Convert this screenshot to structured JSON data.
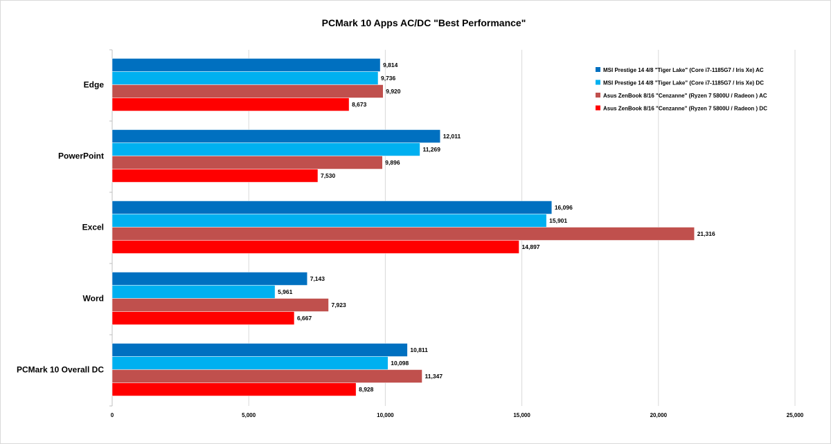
{
  "chart_data": {
    "type": "bar",
    "orientation": "horizontal",
    "title": "PCMark 10 Apps AC/DC \"Best Performance\"",
    "categories": [
      "Edge",
      "PowerPoint",
      "Excel",
      "Word",
      "PCMark 10 Overall DC"
    ],
    "series": [
      {
        "name": "MSI Prestige 14 4/8  \"Tiger Lake\" (Core i7-1185G7 / Iris Xe) AC",
        "color": "#0070c0",
        "values": [
          9814,
          12011,
          16096,
          7143,
          10811
        ],
        "labels": [
          "9,814",
          "12,011",
          "16,096",
          "7,143",
          "10,811"
        ]
      },
      {
        "name": "MSI Prestige 14 4/8  \"Tiger Lake\" (Core i7-1185G7 / Iris Xe) DC",
        "color": "#00b0f0",
        "values": [
          9736,
          11269,
          15901,
          5961,
          10098
        ],
        "labels": [
          "9,736",
          "11,269",
          "15,901",
          "5,961",
          "10,098"
        ]
      },
      {
        "name": "Asus ZenBook 8/16  \"Cenzanne\" (Ryzen 7 5800U / Radeon ) AC",
        "color": "#c0504d",
        "values": [
          9920,
          9896,
          21316,
          7923,
          11347
        ],
        "labels": [
          "9,920",
          "9,896",
          "21,316",
          "7,923",
          "11,347"
        ]
      },
      {
        "name": "Asus ZenBook 8/16  \"Cenzanne\" (Ryzen 7 5800U / Radeon ) DC",
        "color": "#ff0000",
        "values": [
          8673,
          7530,
          14897,
          6667,
          8928
        ],
        "labels": [
          "8,673",
          "7,530",
          "14,897",
          "6,667",
          "8,928"
        ]
      }
    ],
    "xlim": [
      0,
      25000
    ],
    "xticks": [
      0,
      5000,
      10000,
      15000,
      20000,
      25000
    ],
    "xtick_labels": [
      "0",
      "5,000",
      "10,000",
      "15,000",
      "20,000",
      "25,000"
    ],
    "grid": true,
    "legend_position": "top-right"
  }
}
